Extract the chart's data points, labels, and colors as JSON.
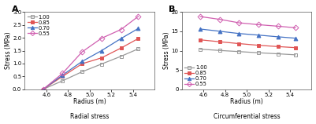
{
  "radius": [
    4.57,
    4.75,
    4.93,
    5.11,
    5.29,
    5.45
  ],
  "panel_A_label": "A",
  "panel_B_label": "B",
  "xlabel": "Radius (m)",
  "ylabel": "Stress (MPa)",
  "subtitle_A": "Radial stress",
  "subtitle_B": "Circumferential stress",
  "xlim": [
    4.4,
    5.6
  ],
  "xticks": [
    4.6,
    4.8,
    5.0,
    5.2,
    5.4
  ],
  "ylim_A": [
    0.0,
    3.0
  ],
  "yticks_A": [
    0.0,
    0.5,
    1.0,
    1.5,
    2.0,
    2.5,
    3.0
  ],
  "ylim_B": [
    0,
    20
  ],
  "yticks_B": [
    0,
    5,
    10,
    15,
    20
  ],
  "series": [
    {
      "label": "1.00",
      "color": "#999999",
      "marker": "s",
      "markerfacecolor": "none",
      "markersize": 3.5,
      "linewidth": 0.9,
      "radial": [
        0.0,
        0.33,
        0.68,
        0.98,
        1.28,
        1.57
      ],
      "circumferential": [
        10.38,
        10.05,
        9.75,
        9.45,
        9.18,
        8.92
      ]
    },
    {
      "label": "0.85",
      "color": "#e05555",
      "marker": "s",
      "markerfacecolor": "#e05555",
      "markersize": 3.5,
      "linewidth": 0.9,
      "radial": [
        0.0,
        0.5,
        0.99,
        1.22,
        1.6,
        1.97
      ],
      "circumferential": [
        12.8,
        12.3,
        11.82,
        11.38,
        11.05,
        10.78
      ]
    },
    {
      "label": "0.70",
      "color": "#4472c4",
      "marker": "^",
      "markerfacecolor": "#4472c4",
      "markersize": 3.5,
      "linewidth": 0.9,
      "radial": [
        0.0,
        0.55,
        1.08,
        1.5,
        1.97,
        2.36
      ],
      "circumferential": [
        15.6,
        15.02,
        14.42,
        14.02,
        13.58,
        13.22
      ]
    },
    {
      "label": "0.55",
      "color": "#d060b0",
      "marker": "D",
      "markerfacecolor": "none",
      "markersize": 3.5,
      "linewidth": 0.9,
      "radial": [
        0.0,
        0.62,
        1.45,
        1.98,
        2.32,
        2.83
      ],
      "circumferential": [
        18.82,
        18.1,
        17.2,
        16.72,
        16.32,
        15.92
      ]
    }
  ]
}
